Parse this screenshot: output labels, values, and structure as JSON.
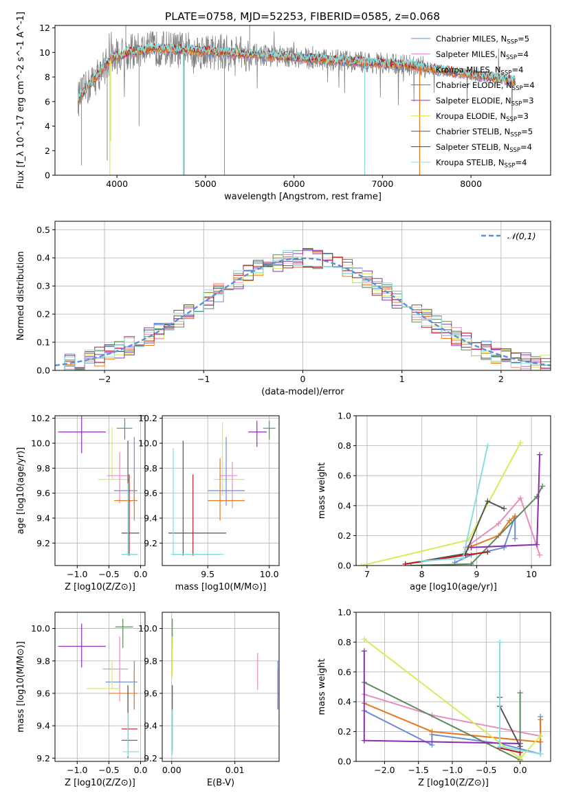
{
  "figure_title": "PLATE=0758, MJD=52253, FIBERID=0585, z=0.068",
  "colors": {
    "data": "#808080",
    "ref": "#5b8fd9",
    "models": [
      "#6b8bd8",
      "#e88bc0",
      "#e87722",
      "#5a8a5a",
      "#8e2cb3",
      "#d8ea55",
      "#555555",
      "#c01818",
      "#86dde0"
    ]
  },
  "model_names": [
    "Chabrier MILES, N_SSP=5",
    "Salpeter MILES, N_SSP=4",
    "Kroupa MILES, N_SSP=4",
    "Chabrier ELODIE, N_SSP=4",
    "Salpeter ELODIE, N_SSP=3",
    "Kroupa ELODIE, N_SSP=3",
    "Chabrier STELIB, N_SSP=5",
    "Salpeter STELIB, N_SSP=4",
    "Kroupa STELIB, N_SSP=4"
  ],
  "chart_data": [
    {
      "id": "spectrum",
      "type": "line",
      "title": "PLATE=0758, MJD=52253, FIBERID=0585, z=0.068",
      "xlabel": "wavelength [Angstrom, rest frame]",
      "ylabel": "Flux [f_λ 10^-17 erg cm^-2 s^-1 A^-1]",
      "xlim": [
        3300,
        8900
      ],
      "ylim": [
        0,
        12.2
      ],
      "xticks": [
        4000,
        5000,
        6000,
        7000,
        8000
      ],
      "yticks": [
        0,
        2,
        4,
        6,
        8,
        10,
        12
      ],
      "grid": false,
      "legend": "top-right",
      "continuum_x": [
        3560,
        3600,
        3650,
        3700,
        3750,
        3800,
        3850,
        3900,
        3950,
        4000,
        4100,
        4200,
        4300,
        4400,
        4500,
        4600,
        4700,
        4800,
        4900,
        5000,
        5200,
        5400,
        5600,
        5800,
        6000,
        6200,
        6400,
        6600,
        6800,
        7000,
        7200,
        7400,
        7600,
        7800,
        8000,
        8200,
        8400,
        8500
      ],
      "continuum_y": [
        6.2,
        6.6,
        7.0,
        7.4,
        7.9,
        8.3,
        8.8,
        9.2,
        9.5,
        9.7,
        9.9,
        10.1,
        10.2,
        10.3,
        10.3,
        10.3,
        10.2,
        10.2,
        10.1,
        10.1,
        10.0,
        9.9,
        9.8,
        9.7,
        9.6,
        9.5,
        9.4,
        9.3,
        9.2,
        9.1,
        9.0,
        8.9,
        8.6,
        8.4,
        8.2,
        8.0,
        7.8,
        7.6
      ],
      "data_spikes": [
        {
          "x": 3600,
          "y": 0.8
        },
        {
          "x": 3890,
          "y": 1.2
        },
        {
          "x": 4100,
          "y": 12.2
        },
        {
          "x": 4250,
          "y": 4.0
        },
        {
          "x": 4760,
          "y": 0.0
        },
        {
          "x": 5215,
          "y": 0.0
        },
        {
          "x": 5500,
          "y": 12.2
        },
        {
          "x": 6800,
          "y": 0.0
        },
        {
          "x": 7420,
          "y": 0.0
        }
      ],
      "model_dips": [
        {
          "x": 3920,
          "y": 0.0
        },
        {
          "x": 3930,
          "y": 2.8
        },
        {
          "x": 4750,
          "y": 0.0
        },
        {
          "x": 6800,
          "y": 0.0
        },
        {
          "x": 7420,
          "y": 0.0
        }
      ]
    },
    {
      "id": "residuals",
      "type": "line",
      "xlabel": "(data-model)/error",
      "ylabel": "Normed distribution",
      "xlim": [
        -2.5,
        2.5
      ],
      "ylim": [
        0,
        0.53
      ],
      "xticks": [
        -2,
        -1,
        0,
        1,
        2
      ],
      "yticks": [
        0.0,
        0.1,
        0.2,
        0.3,
        0.4,
        0.5
      ],
      "grid": true,
      "legend": "top-right",
      "series": [
        {
          "name": "𝒩(0,1)",
          "style": "dashed",
          "mean": 0,
          "sigma": 1
        }
      ]
    },
    {
      "id": "age_vs_Z",
      "type": "scatter",
      "xlabel": "Z [log10(Z/Z⊙)]",
      "ylabel": "age  [log10(age/yr)]",
      "xlim": [
        -1.35,
        0.07
      ],
      "ylim": [
        9.02,
        10.22
      ],
      "xticks": [
        -1.0,
        -0.5,
        0.0
      ],
      "yticks": [
        9.2,
        9.4,
        9.6,
        9.8,
        10.0,
        10.2
      ],
      "grid": true,
      "points": [
        {
          "m": 4,
          "x": -0.93,
          "y": 10.09,
          "xlo": -1.3,
          "xhi": -0.55,
          "ylo": 9.92,
          "yhi": 10.25
        },
        {
          "m": 3,
          "x": -0.25,
          "y": 10.12,
          "xlo": -0.38,
          "xhi": -0.13,
          "ylo": 10.03,
          "yhi": 10.2
        },
        {
          "m": 5,
          "x": -0.45,
          "y": 9.71,
          "xlo": -0.67,
          "xhi": -0.18,
          "ylo": 9.71,
          "yhi": 10.13
        },
        {
          "m": 1,
          "x": -0.33,
          "y": 9.74,
          "xlo": -0.53,
          "xhi": -0.21,
          "ylo": 9.52,
          "yhi": 9.93
        },
        {
          "m": 0,
          "x": -0.1,
          "y": 9.62,
          "xlo": -0.42,
          "xhi": -0.05,
          "ylo": 9.5,
          "yhi": 10.05
        },
        {
          "m": 2,
          "x": -0.1,
          "y": 9.54,
          "xlo": -0.42,
          "xhi": -0.05,
          "ylo": 9.38,
          "yhi": 9.7
        },
        {
          "m": 6,
          "x": -0.2,
          "y": 9.28,
          "xlo": -0.3,
          "xhi": -0.02,
          "ylo": 9.1,
          "yhi": 10.02
        },
        {
          "m": 7,
          "x": -0.18,
          "y": 9.11,
          "xlo": -0.3,
          "xhi": -0.06,
          "ylo": 9.1,
          "yhi": 9.75
        },
        {
          "m": 8,
          "x": -0.2,
          "y": 9.11,
          "xlo": -0.3,
          "xhi": -0.04,
          "ylo": 9.1,
          "yhi": 9.68
        }
      ]
    },
    {
      "id": "age_vs_mass",
      "type": "scatter",
      "xlabel": "mass [log10(M/M⊙)]",
      "ylabel": "",
      "xlim": [
        9.13,
        10.08
      ],
      "ylim": [
        9.02,
        10.22
      ],
      "xticks": [
        9.5,
        10.0
      ],
      "yticks": [
        9.2,
        9.4,
        9.6,
        9.8,
        10.0,
        10.2
      ],
      "grid": true,
      "points": [
        {
          "m": 4,
          "x": 9.9,
          "y": 10.09,
          "xlo": 9.83,
          "xhi": 9.98,
          "ylo": 9.97,
          "yhi": 10.18
        },
        {
          "m": 3,
          "x": 10.0,
          "y": 10.12,
          "xlo": 9.95,
          "xhi": 10.05,
          "ylo": 10.03,
          "yhi": 10.18
        },
        {
          "m": 5,
          "x": 9.62,
          "y": 9.71,
          "xlo": 9.55,
          "xhi": 9.8,
          "ylo": 9.58,
          "yhi": 10.17
        },
        {
          "m": 1,
          "x": 9.7,
          "y": 9.74,
          "xlo": 9.6,
          "xhi": 9.74,
          "ylo": 9.48,
          "yhi": 9.85
        },
        {
          "m": 0,
          "x": 9.65,
          "y": 9.62,
          "xlo": 9.5,
          "xhi": 9.8,
          "ylo": 9.5,
          "yhi": 10.05
        },
        {
          "m": 2,
          "x": 9.6,
          "y": 9.54,
          "xlo": 9.5,
          "xhi": 9.8,
          "ylo": 9.38,
          "yhi": 9.88
        },
        {
          "m": 6,
          "x": 9.3,
          "y": 9.28,
          "xlo": 9.18,
          "xhi": 9.65,
          "ylo": 9.1,
          "yhi": 10.02
        },
        {
          "m": 7,
          "x": 9.38,
          "y": 9.11,
          "xlo": 9.22,
          "xhi": 9.6,
          "ylo": 9.1,
          "yhi": 9.75
        },
        {
          "m": 8,
          "x": 9.22,
          "y": 9.11,
          "xlo": 9.2,
          "xhi": 9.63,
          "ylo": 9.1,
          "yhi": 9.96
        }
      ]
    },
    {
      "id": "weight_vs_age",
      "type": "line",
      "xlabel": "age  [log10(age/yr)]",
      "ylabel": "mass weight",
      "xlim": [
        6.8,
        10.35
      ],
      "ylim": [
        0,
        1.0
      ],
      "xticks": [
        7,
        8,
        9,
        10
      ],
      "yticks": [
        0.0,
        0.2,
        0.4,
        0.6,
        0.8,
        1.0
      ],
      "grid": true,
      "series": [
        {
          "m": 0,
          "x": [
            8.6,
            8.9,
            9.5,
            9.7,
            9.7
          ],
          "y": [
            0.02,
            0.07,
            0.12,
            0.33,
            0.18
          ]
        },
        {
          "m": 1,
          "x": [
            8.8,
            9.4,
            9.8,
            10.15
          ],
          "y": [
            0.12,
            0.28,
            0.45,
            0.07
          ]
        },
        {
          "m": 2,
          "x": [
            8.85,
            9.4,
            9.6,
            9.7
          ],
          "y": [
            0.12,
            0.2,
            0.3,
            0.33
          ]
        },
        {
          "m": 3,
          "x": [
            7.8,
            8.9,
            10.1,
            10.2
          ],
          "y": [
            0.0,
            0.01,
            0.46,
            0.53
          ]
        },
        {
          "m": 4,
          "x": [
            8.9,
            10.1,
            10.15
          ],
          "y": [
            0.12,
            0.14,
            0.74
          ]
        },
        {
          "m": 5,
          "x": [
            6.9,
            8.85,
            9.8
          ],
          "y": [
            0.0,
            0.17,
            0.82
          ]
        },
        {
          "m": 6,
          "x": [
            7.7,
            8.8,
            9.2,
            9.5
          ],
          "y": [
            0.01,
            0.08,
            0.43,
            0.38
          ]
        },
        {
          "m": 7,
          "x": [
            7.7,
            8.8,
            9.2
          ],
          "y": [
            0.01,
            0.07,
            0.09
          ]
        },
        {
          "m": 8,
          "x": [
            8.0,
            8.75,
            9.2
          ],
          "y": [
            0.03,
            0.05,
            0.8
          ]
        }
      ]
    },
    {
      "id": "mass_vs_Z",
      "type": "scatter",
      "xlabel": "Z [log10(Z/Z⊙)]",
      "ylabel": "mass [log10(M/M⊙)]",
      "xlim": [
        -1.35,
        0.07
      ],
      "ylim": [
        9.18,
        10.1
      ],
      "xticks": [
        -1.0,
        -0.5,
        0.0
      ],
      "yticks": [
        9.2,
        9.4,
        9.6,
        9.8,
        10.0
      ],
      "grid": true,
      "points": [
        {
          "m": 4,
          "x": -0.93,
          "y": 9.89,
          "xlo": -1.3,
          "xhi": -0.55,
          "ylo": 9.76,
          "yhi": 10.03
        },
        {
          "m": 3,
          "x": -0.28,
          "y": 10.01,
          "xlo": -0.4,
          "xhi": -0.12,
          "ylo": 9.88,
          "yhi": 10.06
        },
        {
          "m": 1,
          "x": -0.33,
          "y": 9.75,
          "xlo": -0.6,
          "xhi": -0.2,
          "ylo": 9.55,
          "yhi": 9.95
        },
        {
          "m": 0,
          "x": -0.1,
          "y": 9.67,
          "xlo": -0.55,
          "xhi": -0.05,
          "ylo": 9.5,
          "yhi": 9.8
        },
        {
          "m": 5,
          "x": -0.45,
          "y": 9.63,
          "xlo": -0.85,
          "xhi": -0.32,
          "ylo": 9.63,
          "yhi": 9.8
        },
        {
          "m": 2,
          "x": -0.1,
          "y": 9.6,
          "xlo": -0.5,
          "xhi": -0.05,
          "ylo": 9.5,
          "yhi": 9.75
        },
        {
          "m": 7,
          "x": -0.2,
          "y": 9.38,
          "xlo": -0.3,
          "xhi": -0.05,
          "ylo": 9.3,
          "yhi": 9.64
        },
        {
          "m": 6,
          "x": -0.2,
          "y": 9.31,
          "xlo": -0.3,
          "xhi": -0.05,
          "ylo": 9.2,
          "yhi": 9.65
        },
        {
          "m": 8,
          "x": -0.2,
          "y": 9.24,
          "xlo": -0.28,
          "xhi": -0.02,
          "ylo": 9.21,
          "yhi": 9.48
        }
      ]
    },
    {
      "id": "mass_vs_ebv",
      "type": "scatter",
      "xlabel": "E(B-V)",
      "ylabel": "",
      "xlim": [
        -0.0015,
        0.017
      ],
      "ylim": [
        9.18,
        10.1
      ],
      "xticks": [
        0.0,
        0.01
      ],
      "yticks": [
        9.2,
        9.4,
        9.6,
        9.8,
        10.0
      ],
      "grid": true,
      "points": [
        {
          "m": 3,
          "x": 0.0001,
          "y": 9.97,
          "xlo": 0.0001,
          "xhi": 0.0001,
          "ylo": 9.88,
          "yhi": 10.06
        },
        {
          "m": 5,
          "x": 0.0001,
          "y": 9.85,
          "xlo": 0.0001,
          "xhi": 0.0001,
          "ylo": 9.7,
          "yhi": 9.95
        },
        {
          "m": 1,
          "x": 0.0136,
          "y": 9.74,
          "xlo": 0.0136,
          "xhi": 0.0136,
          "ylo": 9.62,
          "yhi": 9.85
        },
        {
          "m": 2,
          "x": 0.0168,
          "y": 9.62,
          "xlo": 0.0168,
          "xhi": 0.0168,
          "ylo": 9.5,
          "yhi": 9.75
        },
        {
          "m": 0,
          "x": 0.0168,
          "y": 9.64,
          "xlo": 0.0168,
          "xhi": 0.0168,
          "ylo": 9.5,
          "yhi": 9.8
        },
        {
          "m": 6,
          "x": 0.0001,
          "y": 9.45,
          "xlo": 0.0001,
          "xhi": 0.0001,
          "ylo": 9.25,
          "yhi": 9.65
        },
        {
          "m": 8,
          "x": 0.0001,
          "y": 9.35,
          "xlo": 0.0001,
          "xhi": 0.0001,
          "ylo": 9.22,
          "yhi": 9.5
        }
      ]
    },
    {
      "id": "weight_vs_Z",
      "type": "line",
      "xlabel": "Z [log10(Z/Z⊙)]",
      "ylabel": "mass weight",
      "xlim": [
        -2.42,
        0.45
      ],
      "ylim": [
        0,
        1.0
      ],
      "xticks": [
        -2.0,
        -1.5,
        -1.0,
        -0.5,
        0.0
      ],
      "yticks": [
        0.0,
        0.2,
        0.4,
        0.6,
        0.8,
        1.0
      ],
      "grid": true,
      "series": [
        {
          "m": 0,
          "x": [
            -2.3,
            -1.3,
            -1.3,
            -0.3,
            0.3,
            0.3
          ],
          "y": [
            0.34,
            0.11,
            0.18,
            0.12,
            0.05,
            0.3
          ]
        },
        {
          "m": 1,
          "x": [
            -2.3,
            -1.3,
            0.3
          ],
          "y": [
            0.45,
            0.31,
            0.17
          ]
        },
        {
          "m": 2,
          "x": [
            -2.3,
            -1.3,
            0.3,
            0.3
          ],
          "y": [
            0.39,
            0.2,
            0.13,
            0.28
          ]
        },
        {
          "m": 3,
          "x": [
            -2.3,
            0.0,
            0.0
          ],
          "y": [
            0.53,
            0.01,
            0.46
          ]
        },
        {
          "m": 4,
          "x": [
            -2.3,
            -2.3,
            0.0
          ],
          "y": [
            0.74,
            0.14,
            0.12
          ]
        },
        {
          "m": 5,
          "x": [
            -2.3,
            0.0,
            0.3
          ],
          "y": [
            0.82,
            0.02,
            0.17
          ]
        },
        {
          "m": 6,
          "x": [
            -0.3,
            -0.3,
            0.0
          ],
          "y": [
            0.43,
            0.37,
            0.1
          ]
        },
        {
          "m": 7,
          "x": [
            -0.3,
            0.0
          ],
          "y": [
            0.09,
            0.06
          ]
        },
        {
          "m": 8,
          "x": [
            -0.3,
            -0.3,
            0.3
          ],
          "y": [
            0.8,
            0.1,
            0.05
          ]
        }
      ]
    }
  ]
}
